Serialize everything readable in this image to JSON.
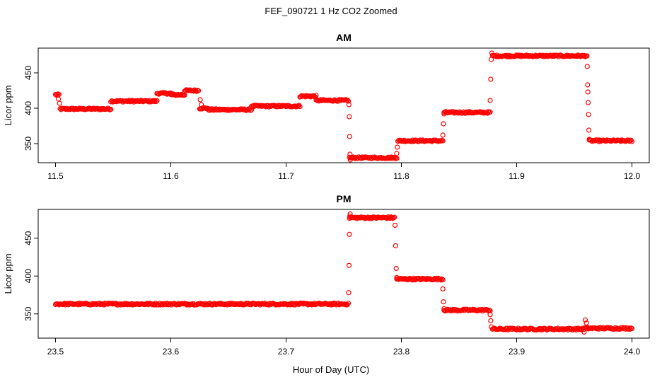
{
  "figure": {
    "title": "FEF_090721  1 Hz CO2 Zoomed",
    "xlabel": "Hour of Day (UTC)",
    "point_color": "#ff0000"
  },
  "chart_data": [
    {
      "type": "scatter",
      "title": "AM",
      "xlabel": "",
      "ylabel": "Licor ppm",
      "xlim": [
        11.485,
        12.015
      ],
      "ylim": [
        323,
        485
      ],
      "xticks": [
        11.5,
        11.6,
        11.7,
        11.8,
        11.9,
        12.0
      ],
      "xtick_labels": [
        "11.5",
        "11.6",
        "11.7",
        "11.8",
        "11.9",
        "12.0"
      ],
      "yticks": [
        350,
        400,
        450
      ],
      "ytick_labels": [
        "350",
        "400",
        "450"
      ],
      "grid": false,
      "legend": "none",
      "segments": [
        [
          11.5,
          11.503,
          419
        ],
        [
          11.504,
          11.548,
          399
        ],
        [
          11.548,
          11.588,
          410
        ],
        [
          11.588,
          11.6,
          421
        ],
        [
          11.6,
          11.612,
          419
        ],
        [
          11.612,
          11.624,
          425
        ],
        [
          11.625,
          11.632,
          400
        ],
        [
          11.632,
          11.67,
          398
        ],
        [
          11.67,
          11.712,
          403
        ],
        [
          11.712,
          11.726,
          417
        ],
        [
          11.726,
          11.754,
          411
        ],
        [
          11.755,
          11.796,
          330
        ],
        [
          11.797,
          11.836,
          354
        ],
        [
          11.837,
          11.877,
          394
        ],
        [
          11.879,
          11.961,
          474
        ],
        [
          11.963,
          12.0,
          354
        ]
      ],
      "points": [
        [
          11.5025,
          413
        ],
        [
          11.5035,
          407
        ],
        [
          11.6255,
          412
        ],
        [
          11.6265,
          405
        ],
        [
          11.7545,
          405
        ],
        [
          11.7548,
          388
        ],
        [
          11.7551,
          360
        ],
        [
          11.7554,
          335
        ],
        [
          11.7557,
          327
        ],
        [
          11.796,
          336
        ],
        [
          11.7965,
          345
        ],
        [
          11.836,
          362
        ],
        [
          11.8365,
          378
        ],
        [
          11.837,
          392
        ],
        [
          11.877,
          411
        ],
        [
          11.8775,
          441
        ],
        [
          11.878,
          469
        ],
        [
          11.8785,
          478
        ],
        [
          11.9612,
          459
        ],
        [
          11.9615,
          433
        ],
        [
          11.9618,
          423
        ],
        [
          11.962,
          408
        ],
        [
          11.9623,
          391
        ],
        [
          11.9626,
          369
        ],
        [
          11.9629,
          356
        ]
      ]
    },
    {
      "type": "scatter",
      "title": "PM",
      "xlabel": "",
      "ylabel": "Licor ppm",
      "xlim": [
        23.485,
        24.015
      ],
      "ylim": [
        318,
        488
      ],
      "xticks": [
        23.5,
        23.6,
        23.7,
        23.8,
        23.9,
        24.0
      ],
      "xtick_labels": [
        "23.5",
        "23.6",
        "23.7",
        "23.8",
        "23.9",
        "24.0"
      ],
      "yticks": [
        350,
        400,
        450
      ],
      "ytick_labels": [
        "350",
        "400",
        "450"
      ],
      "grid": false,
      "legend": "none",
      "segments": [
        [
          23.5,
          23.754,
          363
        ],
        [
          23.755,
          23.794,
          477
        ],
        [
          23.796,
          23.836,
          396
        ],
        [
          23.837,
          23.877,
          355
        ],
        [
          23.879,
          23.958,
          330
        ],
        [
          23.959,
          24.0,
          331
        ]
      ],
      "points": [
        [
          23.7543,
          378
        ],
        [
          23.7546,
          414
        ],
        [
          23.7549,
          455
        ],
        [
          23.7553,
          479
        ],
        [
          23.7556,
          482
        ],
        [
          23.7945,
          467
        ],
        [
          23.795,
          440
        ],
        [
          23.7955,
          410
        ],
        [
          23.796,
          398
        ],
        [
          23.836,
          383
        ],
        [
          23.8365,
          366
        ],
        [
          23.837,
          357
        ],
        [
          23.877,
          349
        ],
        [
          23.8775,
          341
        ],
        [
          23.878,
          333
        ],
        [
          23.9585,
          326
        ],
        [
          23.9595,
          342
        ],
        [
          23.9605,
          338
        ]
      ]
    }
  ]
}
